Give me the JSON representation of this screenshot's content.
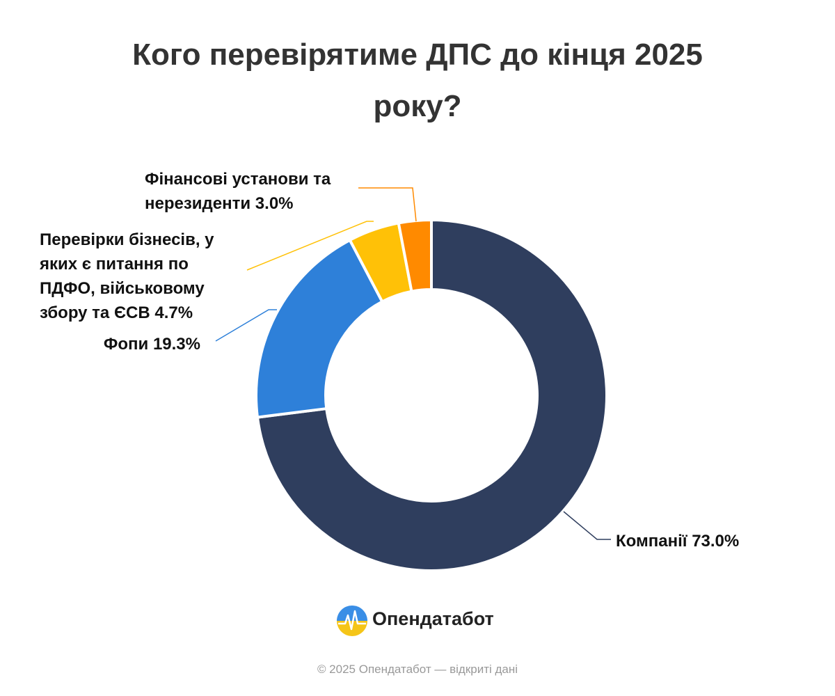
{
  "chart_data": {
    "type": "donut",
    "title": "Кого перевірятиме ДПС до кінця 2025 року?",
    "categories": [
      "Компанії",
      "Фопи",
      "Перевірки бізнесів, у яких є питання по ПДФО, військовому збору та ЄСВ",
      "Фінансові установи та нерезиденти"
    ],
    "values": [
      73.0,
      19.3,
      4.7,
      3.0
    ],
    "value_labels": [
      "73.0%",
      "19.3%",
      "4.7%",
      "3.0%"
    ],
    "colors": [
      "#2f3e5e",
      "#2e80d9",
      "#ffc107",
      "#ff8a00"
    ]
  },
  "brand": "Опендатабот",
  "footer": "© 2025 Опендатабот — відкриті дані"
}
